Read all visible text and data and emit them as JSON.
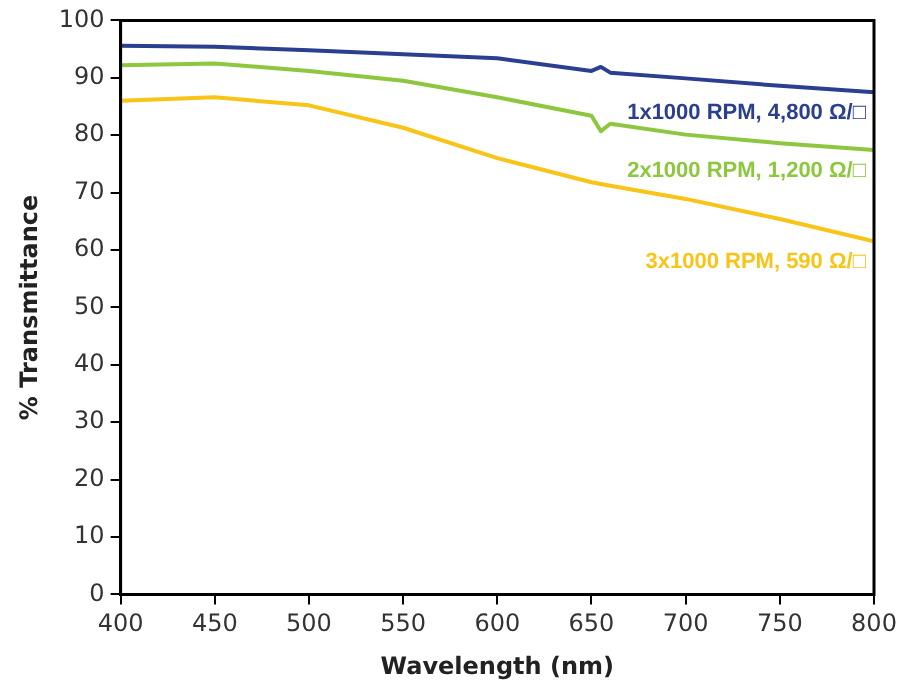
{
  "chart_data": {
    "type": "line",
    "xlabel": "Wavelength (nm)",
    "ylabel": "% Transmittance",
    "x": [
      400,
      450,
      500,
      550,
      600,
      650,
      655,
      660,
      700,
      750,
      800
    ],
    "xlim": [
      400,
      800
    ],
    "xticks": [
      400,
      450,
      500,
      550,
      600,
      650,
      700,
      750,
      800
    ],
    "ylim": [
      0,
      100
    ],
    "yticks": [
      0,
      10,
      20,
      30,
      40,
      50,
      60,
      70,
      80,
      90,
      100
    ],
    "grid": false,
    "legend": false,
    "marker": "none",
    "line_style": "solid",
    "series": [
      {
        "name": "1x1000 RPM, 4,800 Ω/□",
        "color": "#2a3f8f",
        "values": [
          95.6,
          95.4,
          94.8,
          94.1,
          93.4,
          91.2,
          91.9,
          90.9,
          89.9,
          88.6,
          87.5
        ]
      },
      {
        "name": "2x1000 RPM, 1,200 Ω/□",
        "color": "#8dc63f",
        "values": [
          92.2,
          92.5,
          91.2,
          89.5,
          86.6,
          83.4,
          80.7,
          82.0,
          80.1,
          78.6,
          77.4
        ]
      },
      {
        "name": "3x1000 RPM, 590 Ω/□",
        "color": "#f7c417",
        "values": [
          86.0,
          86.6,
          85.2,
          81.3,
          76.0,
          71.8,
          71.5,
          71.2,
          68.9,
          65.4,
          61.5
        ]
      }
    ]
  }
}
